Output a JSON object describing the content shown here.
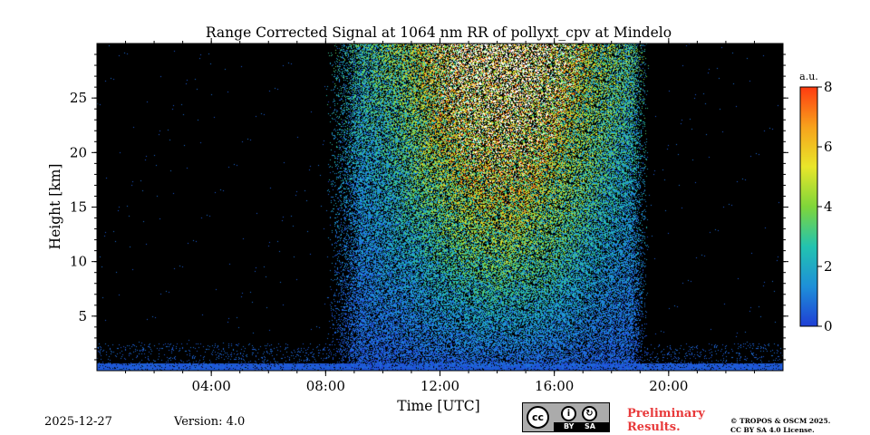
{
  "chart_data": {
    "type": "heatmap",
    "title": "Range Corrected Signal at 1064 nm RR of pollyxt_cpv at Mindelo",
    "xlabel": "Time [UTC]",
    "ylabel": "Height [km]",
    "x_unit": "hours UTC",
    "xlim": [
      0,
      24
    ],
    "ylim": [
      0,
      30
    ],
    "x_ticks": [
      {
        "value": 4,
        "label": "04:00"
      },
      {
        "value": 8,
        "label": "08:00"
      },
      {
        "value": 12,
        "label": "12:00"
      },
      {
        "value": 16,
        "label": "16:00"
      },
      {
        "value": 20,
        "label": "20:00"
      }
    ],
    "y_ticks": [
      {
        "value": 5,
        "label": "5"
      },
      {
        "value": 10,
        "label": "10"
      },
      {
        "value": 15,
        "label": "15"
      },
      {
        "value": 20,
        "label": "20"
      },
      {
        "value": 25,
        "label": "25"
      }
    ],
    "colorbar": {
      "label": "a.u.",
      "range": [
        0,
        8
      ],
      "ticks": [
        "0",
        "2",
        "4",
        "6",
        "8"
      ],
      "colors": [
        "#1f3fd6",
        "#1e90d8",
        "#22c3b0",
        "#7fd63a",
        "#e9e62a",
        "#f7a21c",
        "#ff3b10"
      ]
    },
    "regions": [
      {
        "description": "near-surface layer",
        "x_range": [
          0,
          24
        ],
        "height_range": [
          0,
          0.7
        ],
        "value_range": [
          0,
          1.5
        ]
      },
      {
        "description": "daytime background increase",
        "x_range": [
          8,
          19.3
        ],
        "height_range": [
          0,
          30
        ],
        "value_range": [
          0,
          8
        ]
      }
    ],
    "no_data_color": "#000000",
    "saturation_color": "#ffffff"
  },
  "footer": {
    "date": "2025-12-27",
    "version": "Version: 4.0",
    "license_badge": {
      "cc": "cc",
      "by": "BY",
      "sa": "SA"
    },
    "preliminary_line1": "Preliminary",
    "preliminary_line2": "Results.",
    "copyright_line1": "© TROPOS & OSCM 2025.",
    "copyright_line2": "CC BY SA 4.0 License."
  }
}
